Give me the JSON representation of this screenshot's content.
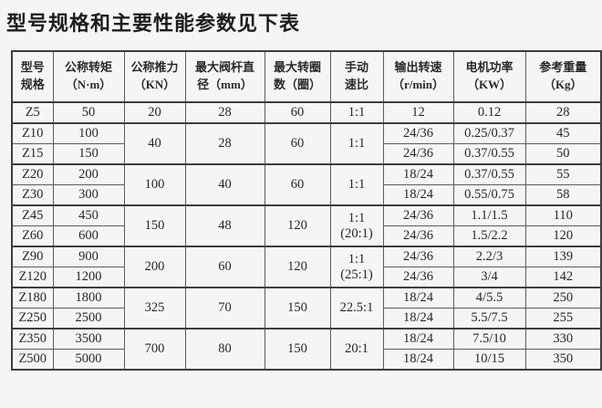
{
  "page": {
    "title": "型号规格和主要性能参数见下表",
    "background_color": "#f5f5f4",
    "border_color": "#3e3e3e",
    "text_color": "#262626"
  },
  "table": {
    "headers": [
      {
        "label": "型号\n规格"
      },
      {
        "label": "公称转矩\n（N·m）"
      },
      {
        "label": "公称推力\n（KN）"
      },
      {
        "label": "最大阀杆直\n径（mm）"
      },
      {
        "label": "最大转圈\n数（圈）"
      },
      {
        "label": "手动\n速比"
      },
      {
        "label": "输出转速\n（r/min）"
      },
      {
        "label": "电机功率\n（KW）"
      },
      {
        "label": "参考重量\n（Kg）"
      }
    ],
    "rows": [
      {
        "cells": [
          {
            "t": "Z5"
          },
          {
            "t": "50"
          },
          {
            "t": "20"
          },
          {
            "t": "28"
          },
          {
            "t": "60"
          },
          {
            "t": "1:1"
          },
          {
            "t": "12"
          },
          {
            "t": "0.12"
          },
          {
            "t": "28"
          }
        ]
      },
      {
        "group_start": true,
        "cells": [
          {
            "t": "Z10"
          },
          {
            "t": "100"
          },
          {
            "t": "40",
            "rs": 2
          },
          {
            "t": "28",
            "rs": 2
          },
          {
            "t": "60",
            "rs": 2
          },
          {
            "t": "1:1",
            "rs": 2
          },
          {
            "t": "24/36"
          },
          {
            "t": "0.25/0.37"
          },
          {
            "t": "45"
          }
        ]
      },
      {
        "cells": [
          {
            "t": "Z15"
          },
          {
            "t": "150"
          },
          {
            "t": "24/36"
          },
          {
            "t": "0.37/0.55"
          },
          {
            "t": "50"
          }
        ]
      },
      {
        "group_start": true,
        "cells": [
          {
            "t": "Z20"
          },
          {
            "t": "200"
          },
          {
            "t": "100",
            "rs": 2
          },
          {
            "t": "40",
            "rs": 2
          },
          {
            "t": "60",
            "rs": 2
          },
          {
            "t": "1:1",
            "rs": 2
          },
          {
            "t": "18/24"
          },
          {
            "t": "0.37/0.55"
          },
          {
            "t": "55"
          }
        ]
      },
      {
        "cells": [
          {
            "t": "Z30"
          },
          {
            "t": "300"
          },
          {
            "t": "18/24"
          },
          {
            "t": "0.55/0.75"
          },
          {
            "t": "58"
          }
        ]
      },
      {
        "group_start": true,
        "cells": [
          {
            "t": "Z45"
          },
          {
            "t": "450"
          },
          {
            "t": "150",
            "rs": 2
          },
          {
            "t": "48",
            "rs": 2
          },
          {
            "t": "120",
            "rs": 2
          },
          {
            "t": "1:1\n(20:1)",
            "rs": 2
          },
          {
            "t": "24/36"
          },
          {
            "t": "1.1/1.5"
          },
          {
            "t": "110"
          }
        ]
      },
      {
        "cells": [
          {
            "t": "Z60"
          },
          {
            "t": "600"
          },
          {
            "t": "24/36"
          },
          {
            "t": "1.5/2.2"
          },
          {
            "t": "120"
          }
        ]
      },
      {
        "group_start": true,
        "cells": [
          {
            "t": "Z90"
          },
          {
            "t": "900"
          },
          {
            "t": "200",
            "rs": 2
          },
          {
            "t": "60",
            "rs": 2
          },
          {
            "t": "120",
            "rs": 2
          },
          {
            "t": "1:1\n(25:1)",
            "rs": 2
          },
          {
            "t": "24/36"
          },
          {
            "t": "2.2/3"
          },
          {
            "t": "139"
          }
        ]
      },
      {
        "cells": [
          {
            "t": "Z120"
          },
          {
            "t": "1200"
          },
          {
            "t": "24/36"
          },
          {
            "t": "3/4"
          },
          {
            "t": "142"
          }
        ]
      },
      {
        "group_start": true,
        "cells": [
          {
            "t": "Z180"
          },
          {
            "t": "1800"
          },
          {
            "t": "325",
            "rs": 2
          },
          {
            "t": "70",
            "rs": 2
          },
          {
            "t": "150",
            "rs": 2
          },
          {
            "t": "22.5:1",
            "rs": 2
          },
          {
            "t": "18/24"
          },
          {
            "t": "4/5.5"
          },
          {
            "t": "250"
          }
        ]
      },
      {
        "cells": [
          {
            "t": "Z250"
          },
          {
            "t": "2500"
          },
          {
            "t": "18/24"
          },
          {
            "t": "5.5/7.5"
          },
          {
            "t": "255"
          }
        ]
      },
      {
        "group_start": true,
        "cells": [
          {
            "t": "Z350"
          },
          {
            "t": "3500"
          },
          {
            "t": "700",
            "rs": 2
          },
          {
            "t": "80",
            "rs": 2
          },
          {
            "t": "150",
            "rs": 2
          },
          {
            "t": "20:1",
            "rs": 2
          },
          {
            "t": "18/24"
          },
          {
            "t": "7.5/10"
          },
          {
            "t": "330"
          }
        ]
      },
      {
        "cells": [
          {
            "t": "Z500"
          },
          {
            "t": "5000"
          },
          {
            "t": "18/24"
          },
          {
            "t": "10/15"
          },
          {
            "t": "350"
          }
        ]
      }
    ]
  }
}
